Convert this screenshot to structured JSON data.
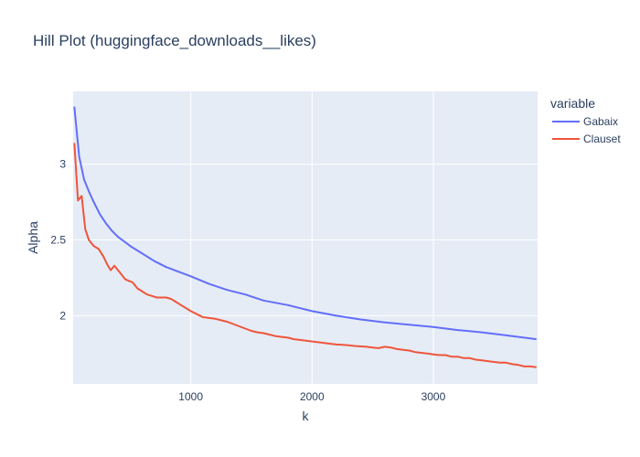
{
  "chart_data": {
    "type": "line",
    "title": "Hill Plot (huggingface_downloads__likes)",
    "xlabel": "k",
    "ylabel": "Alpha",
    "xlim": [
      30,
      3860
    ],
    "ylim": [
      1.55,
      3.48
    ],
    "x_ticks": [
      1000,
      2000,
      3000
    ],
    "x_tick_labels": [
      "1000",
      "2000",
      "3000"
    ],
    "y_ticks": [
      2,
      2.5,
      3
    ],
    "y_tick_labels": [
      "2",
      "2.5",
      "3"
    ],
    "grid": true,
    "background": "#e5ecf6",
    "legend": {
      "title": "variable",
      "placement": "right"
    },
    "series": [
      {
        "name": "Gabaix",
        "color": "#636efa",
        "x": [
          40,
          80,
          120,
          160,
          200,
          250,
          300,
          350,
          400,
          450,
          500,
          600,
          700,
          800,
          900,
          1000,
          1150,
          1300,
          1450,
          1600,
          1800,
          2000,
          2200,
          2400,
          2600,
          2800,
          3000,
          3200,
          3400,
          3600,
          3850
        ],
        "y": [
          3.38,
          3.05,
          2.9,
          2.82,
          2.75,
          2.67,
          2.61,
          2.56,
          2.52,
          2.49,
          2.46,
          2.41,
          2.36,
          2.32,
          2.29,
          2.26,
          2.21,
          2.17,
          2.14,
          2.1,
          2.07,
          2.03,
          2.0,
          1.975,
          1.955,
          1.94,
          1.925,
          1.905,
          1.89,
          1.87,
          1.845
        ]
      },
      {
        "name": "Clauset",
        "color": "#ef553b",
        "x": [
          40,
          70,
          100,
          130,
          160,
          200,
          240,
          280,
          310,
          340,
          370,
          400,
          430,
          460,
          490,
          520,
          560,
          600,
          640,
          680,
          720,
          760,
          800,
          840,
          880,
          920,
          960,
          1000,
          1050,
          1100,
          1150,
          1200,
          1250,
          1300,
          1350,
          1400,
          1450,
          1500,
          1550,
          1600,
          1650,
          1700,
          1750,
          1800,
          1850,
          1900,
          1950,
          2000,
          2050,
          2100,
          2150,
          2200,
          2250,
          2300,
          2350,
          2400,
          2450,
          2500,
          2550,
          2600,
          2650,
          2700,
          2750,
          2800,
          2850,
          2900,
          2950,
          3000,
          3050,
          3100,
          3150,
          3200,
          3250,
          3300,
          3350,
          3400,
          3450,
          3500,
          3550,
          3600,
          3650,
          3700,
          3750,
          3800,
          3850
        ],
        "y": [
          3.14,
          2.76,
          2.79,
          2.57,
          2.5,
          2.46,
          2.44,
          2.39,
          2.34,
          2.3,
          2.33,
          2.3,
          2.27,
          2.24,
          2.23,
          2.22,
          2.18,
          2.16,
          2.14,
          2.13,
          2.12,
          2.12,
          2.12,
          2.11,
          2.09,
          2.07,
          2.05,
          2.03,
          2.01,
          1.99,
          1.985,
          1.98,
          1.97,
          1.96,
          1.945,
          1.93,
          1.915,
          1.9,
          1.89,
          1.885,
          1.875,
          1.865,
          1.86,
          1.855,
          1.845,
          1.84,
          1.835,
          1.83,
          1.825,
          1.82,
          1.815,
          1.81,
          1.808,
          1.805,
          1.8,
          1.797,
          1.795,
          1.79,
          1.786,
          1.795,
          1.79,
          1.78,
          1.775,
          1.77,
          1.76,
          1.755,
          1.75,
          1.745,
          1.74,
          1.74,
          1.73,
          1.73,
          1.72,
          1.72,
          1.71,
          1.705,
          1.7,
          1.695,
          1.69,
          1.69,
          1.68,
          1.675,
          1.665,
          1.665,
          1.66
        ]
      }
    ]
  }
}
